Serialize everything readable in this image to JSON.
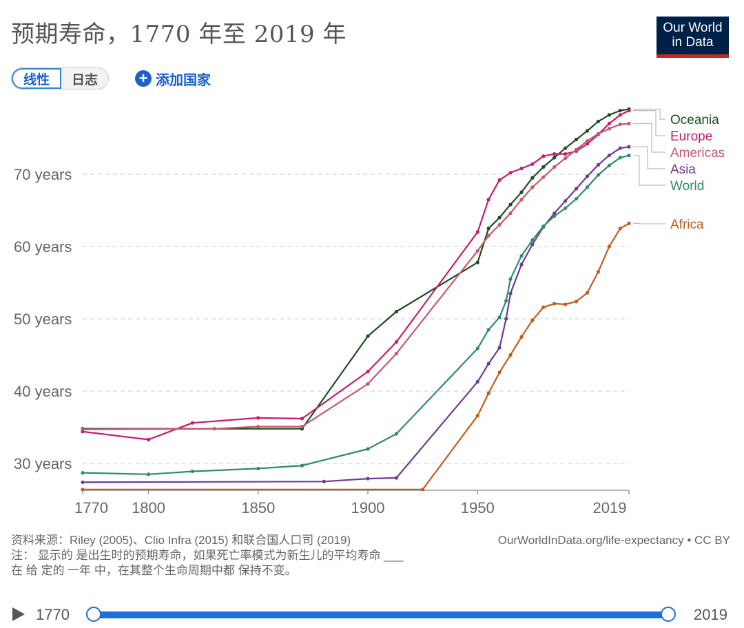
{
  "header": {
    "title": "预期寿命，1770 年至 2019 年",
    "logo_line1": "Our World",
    "logo_line2": "in Data"
  },
  "controls": {
    "scale_linear": "线性",
    "scale_log": "日志",
    "add_country": "添加国家"
  },
  "chart_data": {
    "type": "line",
    "title": "预期寿命，1770 年至 2019 年",
    "xlabel": "",
    "ylabel": "",
    "xlim": [
      1770,
      2019
    ],
    "ylim": [
      27,
      80
    ],
    "x_ticks": [
      1770,
      1800,
      1850,
      1900,
      1950,
      2019
    ],
    "y_ticks": [
      30,
      40,
      50,
      60,
      70
    ],
    "y_tick_labels": [
      "30 years",
      "40 years",
      "50 years",
      "60 years",
      "70 years"
    ],
    "grid": "horizontal dashed",
    "legend": "right, labels at line ends",
    "series": [
      {
        "name": "Oceania",
        "color": "#1b4d1f",
        "points": [
          [
            1770,
            34.8
          ],
          [
            1870,
            34.8
          ],
          [
            1900,
            47.6
          ],
          [
            1913,
            51.0
          ],
          [
            1950,
            57.8
          ],
          [
            1955,
            62.5
          ],
          [
            1960,
            64.0
          ],
          [
            1965,
            65.8
          ],
          [
            1970,
            67.5
          ],
          [
            1975,
            69.5
          ],
          [
            1980,
            71.0
          ],
          [
            1985,
            72.3
          ],
          [
            1990,
            73.6
          ],
          [
            1995,
            74.8
          ],
          [
            2000,
            76.0
          ],
          [
            2005,
            77.3
          ],
          [
            2010,
            78.2
          ],
          [
            2015,
            78.8
          ],
          [
            2019,
            79.0
          ]
        ]
      },
      {
        "name": "Europe",
        "color": "#c81a6b",
        "points": [
          [
            1770,
            34.4
          ],
          [
            1800,
            33.3
          ],
          [
            1820,
            35.6
          ],
          [
            1850,
            36.3
          ],
          [
            1870,
            36.2
          ],
          [
            1900,
            42.7
          ],
          [
            1913,
            46.8
          ],
          [
            1950,
            62.0
          ],
          [
            1955,
            66.5
          ],
          [
            1960,
            69.2
          ],
          [
            1965,
            70.2
          ],
          [
            1970,
            70.8
          ],
          [
            1975,
            71.4
          ],
          [
            1980,
            72.5
          ],
          [
            1985,
            72.8
          ],
          [
            1990,
            72.8
          ],
          [
            1995,
            73.2
          ],
          [
            2000,
            74.2
          ],
          [
            2005,
            75.5
          ],
          [
            2010,
            77.0
          ],
          [
            2015,
            78.2
          ],
          [
            2019,
            78.8
          ]
        ]
      },
      {
        "name": "Americas",
        "color": "#c9576f",
        "points": [
          [
            1770,
            34.7
          ],
          [
            1830,
            34.8
          ],
          [
            1850,
            35.1
          ],
          [
            1870,
            35.1
          ],
          [
            1900,
            41.0
          ],
          [
            1913,
            45.2
          ],
          [
            1950,
            59.4
          ],
          [
            1955,
            61.5
          ],
          [
            1960,
            63.0
          ],
          [
            1965,
            64.6
          ],
          [
            1970,
            66.5
          ],
          [
            1975,
            68.2
          ],
          [
            1980,
            69.6
          ],
          [
            1985,
            71.0
          ],
          [
            1990,
            72.2
          ],
          [
            1995,
            73.4
          ],
          [
            2000,
            74.6
          ],
          [
            2005,
            75.6
          ],
          [
            2010,
            76.3
          ],
          [
            2015,
            76.9
          ],
          [
            2019,
            77.0
          ]
        ]
      },
      {
        "name": "Asia",
        "color": "#6c3a96",
        "points": [
          [
            1770,
            27.4
          ],
          [
            1880,
            27.5
          ],
          [
            1900,
            27.9
          ],
          [
            1913,
            28.0
          ],
          [
            1950,
            41.3
          ],
          [
            1955,
            43.8
          ],
          [
            1960,
            46.0
          ],
          [
            1963,
            50.0
          ],
          [
            1965,
            53.5
          ],
          [
            1970,
            57.5
          ],
          [
            1975,
            60.3
          ],
          [
            1980,
            62.7
          ],
          [
            1985,
            64.6
          ],
          [
            1990,
            66.3
          ],
          [
            1995,
            68.0
          ],
          [
            2000,
            69.7
          ],
          [
            2005,
            71.3
          ],
          [
            2010,
            72.6
          ],
          [
            2015,
            73.6
          ],
          [
            2019,
            73.8
          ]
        ]
      },
      {
        "name": "World",
        "color": "#2e8b6e",
        "points": [
          [
            1770,
            28.7
          ],
          [
            1800,
            28.5
          ],
          [
            1820,
            28.9
          ],
          [
            1850,
            29.3
          ],
          [
            1870,
            29.7
          ],
          [
            1900,
            32.0
          ],
          [
            1913,
            34.1
          ],
          [
            1950,
            45.9
          ],
          [
            1955,
            48.5
          ],
          [
            1960,
            50.2
          ],
          [
            1963,
            52.5
          ],
          [
            1965,
            55.5
          ],
          [
            1970,
            58.7
          ],
          [
            1975,
            60.9
          ],
          [
            1980,
            62.8
          ],
          [
            1985,
            64.2
          ],
          [
            1990,
            65.3
          ],
          [
            1995,
            66.6
          ],
          [
            2000,
            68.2
          ],
          [
            2005,
            69.9
          ],
          [
            2010,
            71.2
          ],
          [
            2015,
            72.3
          ],
          [
            2019,
            72.6
          ]
        ]
      },
      {
        "name": "Africa",
        "color": "#c45a1e",
        "points": [
          [
            1770,
            26.4
          ],
          [
            1925,
            26.4
          ],
          [
            1950,
            36.6
          ],
          [
            1955,
            39.7
          ],
          [
            1960,
            42.6
          ],
          [
            1965,
            45.0
          ],
          [
            1970,
            47.5
          ],
          [
            1975,
            49.8
          ],
          [
            1980,
            51.6
          ],
          [
            1985,
            52.1
          ],
          [
            1990,
            52.0
          ],
          [
            1995,
            52.4
          ],
          [
            2000,
            53.6
          ],
          [
            2005,
            56.5
          ],
          [
            2010,
            60.0
          ],
          [
            2015,
            62.5
          ],
          [
            2019,
            63.2
          ]
        ]
      }
    ]
  },
  "footer": {
    "source": "资料来源：Riley (2005)、Clio Infra (2015) 和联合国人口司 (2019)",
    "url_license": "OurWorldInData.org/life-expectancy • CC BY",
    "note_line1": "注： 显示的 是出生时的预期寿命，如果死亡率模式为新生儿的平均寿命 ___",
    "note_line2": "在 给 定的 一年 中，在其整个生命周期中都 保持不变。"
  },
  "timeline": {
    "start_year": "1770",
    "end_year": "2019"
  }
}
